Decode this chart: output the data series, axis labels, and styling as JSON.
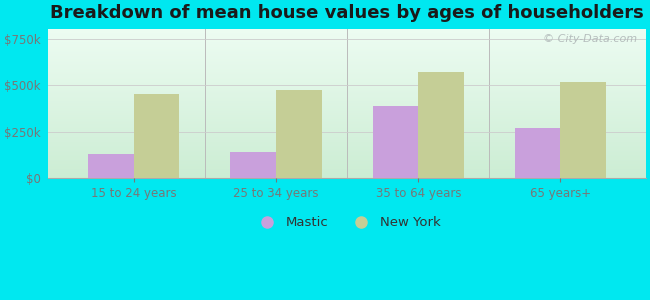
{
  "title": "Breakdown of mean house values by ages of householders",
  "categories": [
    "15 to 24 years",
    "25 to 34 years",
    "35 to 64 years",
    "65 years+"
  ],
  "mastic_values": [
    130000,
    140000,
    390000,
    270000
  ],
  "newyork_values": [
    455000,
    475000,
    570000,
    515000
  ],
  "mastic_color": "#c9a0dc",
  "newyork_color": "#c5ce96",
  "background_color": "#00e8f0",
  "yticks": [
    0,
    250000,
    500000,
    750000
  ],
  "ytick_labels": [
    "$0",
    "$250k",
    "$500k",
    "$750k"
  ],
  "ylim": [
    0,
    800000
  ],
  "bar_width": 0.32,
  "legend_labels": [
    "Mastic",
    "New York"
  ],
  "watermark": "© City-Data.com",
  "title_fontsize": 13,
  "tick_fontsize": 8.5,
  "legend_fontsize": 9.5
}
